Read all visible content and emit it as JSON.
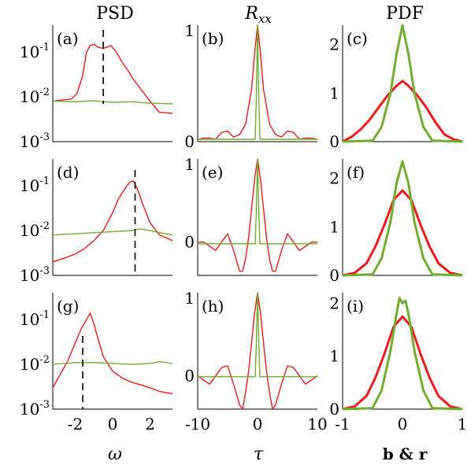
{
  "colors": {
    "red": "#ee1c1c",
    "green": "#6fae2e",
    "axis": "#000000",
    "marker": "#000000"
  },
  "columns": {
    "psd": "PSD",
    "rxx_base": "R",
    "rxx_sub": "xx",
    "pdf": "PDF"
  },
  "xlabels": {
    "psd": "ω",
    "rxx": "τ",
    "pdf": "b & r"
  },
  "panel_labels": [
    "(a)",
    "(b)",
    "(c)",
    "(d)",
    "(e)",
    "(f)",
    "(g)",
    "(h)",
    "(i)"
  ],
  "ticks": {
    "psd_y": [
      "10^-1",
      "10^-2",
      "10^-3"
    ],
    "psd_x": [
      "-2",
      "0",
      "2"
    ],
    "rxx_x": [
      "-10",
      "0",
      "10"
    ],
    "pdf_x": [
      "-1",
      "0",
      "1"
    ],
    "rxx_y": [
      "1",
      "0"
    ],
    "pdf_y_top": [
      "2",
      "1",
      "0"
    ],
    "pdf_y_bottom": [
      "2",
      "1",
      "0"
    ]
  },
  "chart_data": [
    {
      "type": "line",
      "panel": "(a)",
      "title": "PSD",
      "xlabel": "ω",
      "ylabel": "",
      "xlim": [
        -3.2,
        3.2
      ],
      "ylim": [
        0.001,
        0.4
      ],
      "yscale": "log",
      "marker_x": -0.5,
      "series": [
        {
          "color": "red",
          "x": [
            -3.2,
            -2.2,
            -1.9,
            -1.6,
            -1.4,
            -1.2,
            -1.0,
            -0.8,
            -0.5,
            -0.3,
            -0.1,
            0.2,
            0.5,
            0.8,
            1.1,
            1.5,
            2.0,
            2.5,
            3.2
          ],
          "y": [
            0.008,
            0.009,
            0.012,
            0.03,
            0.1,
            0.14,
            0.15,
            0.13,
            0.12,
            0.13,
            0.14,
            0.1,
            0.06,
            0.04,
            0.025,
            0.015,
            0.008,
            0.0045,
            0.0043
          ]
        },
        {
          "color": "green",
          "x": [
            -3.2,
            -2,
            -1,
            0,
            1,
            2,
            3.2
          ],
          "y": [
            0.008,
            0.0078,
            0.0082,
            0.0075,
            0.0078,
            0.0072,
            0.007
          ]
        }
      ]
    },
    {
      "type": "line",
      "panel": "(b)",
      "xlim": [
        -10,
        10
      ],
      "ylim": [
        0,
        1
      ],
      "series": [
        {
          "color": "red",
          "x": [
            -10,
            -9,
            -8,
            -7,
            -6,
            -5,
            -4,
            -3,
            -2,
            -1,
            -0.5,
            0,
            0.5,
            1,
            2,
            3,
            4,
            5,
            6,
            7,
            8,
            9,
            10
          ],
          "y": [
            0.02,
            0.03,
            0.03,
            0.02,
            0.08,
            0.09,
            0.04,
            0.06,
            0.15,
            0.45,
            0.75,
            1.0,
            0.75,
            0.45,
            0.15,
            0.06,
            0.04,
            0.09,
            0.08,
            0.02,
            0.03,
            0.03,
            0.02
          ]
        },
        {
          "color": "green",
          "x": [
            -10,
            -0.4,
            -0.2,
            0,
            0.2,
            0.4,
            10
          ],
          "y": [
            0.02,
            0.02,
            0.4,
            1.0,
            0.4,
            0.02,
            0.02
          ]
        }
      ]
    },
    {
      "type": "line",
      "panel": "(c)",
      "xlim": [
        -1,
        1
      ],
      "ylim": [
        0,
        2.4
      ],
      "series": [
        {
          "color": "red",
          "x": [
            -1,
            -0.85,
            -0.7,
            -0.55,
            -0.4,
            -0.25,
            -0.1,
            0,
            0.1,
            0.25,
            0.4,
            0.55,
            0.7,
            0.85,
            1
          ],
          "y": [
            0,
            0.1,
            0.25,
            0.45,
            0.7,
            0.95,
            1.15,
            1.25,
            1.15,
            0.95,
            0.7,
            0.4,
            0.15,
            0.05,
            0
          ]
        },
        {
          "color": "green",
          "x": [
            -1,
            -0.5,
            -0.35,
            -0.2,
            -0.1,
            0,
            0.1,
            0.2,
            0.35,
            0.5,
            1
          ],
          "y": [
            0,
            0.02,
            0.3,
            1.0,
            1.8,
            2.4,
            1.8,
            1.0,
            0.3,
            0.02,
            0
          ]
        }
      ]
    },
    {
      "type": "line",
      "panel": "(d)",
      "xlabel": "ω",
      "xlim": [
        -3.2,
        3.2
      ],
      "ylim": [
        0.001,
        0.4
      ],
      "yscale": "log",
      "marker_x": 1.2,
      "series": [
        {
          "color": "red",
          "x": [
            -3.2,
            -2.5,
            -2,
            -1.5,
            -1,
            -0.5,
            0,
            0.3,
            0.6,
            0.9,
            1.1,
            1.3,
            1.6,
            2,
            2.5,
            3.2
          ],
          "y": [
            0.002,
            0.0025,
            0.003,
            0.004,
            0.006,
            0.01,
            0.025,
            0.05,
            0.08,
            0.12,
            0.13,
            0.09,
            0.04,
            0.015,
            0.008,
            0.006
          ]
        },
        {
          "color": "green",
          "x": [
            -3.2,
            -2,
            -1,
            0,
            1,
            1.5,
            2,
            2.5,
            3.2
          ],
          "y": [
            0.008,
            0.0085,
            0.009,
            0.0095,
            0.01,
            0.011,
            0.01,
            0.009,
            0.008
          ]
        }
      ]
    },
    {
      "type": "line",
      "panel": "(e)",
      "xlim": [
        -10,
        10
      ],
      "ylim": [
        -0.4,
        1
      ],
      "series": [
        {
          "color": "red",
          "x": [
            -10,
            -9,
            -8,
            -7,
            -6,
            -5,
            -4,
            -3,
            -2.5,
            -2,
            -1.5,
            -1,
            -0.5,
            0,
            0.5,
            1,
            1.5,
            2,
            2.5,
            3,
            4,
            5,
            6,
            7,
            8,
            9,
            10
          ],
          "y": [
            0,
            0.0,
            -0.05,
            -0.1,
            0.0,
            0.1,
            -0.1,
            -0.35,
            -0.35,
            -0.2,
            0.05,
            0.4,
            0.75,
            1.0,
            0.75,
            0.4,
            0.05,
            -0.2,
            -0.35,
            -0.35,
            -0.1,
            0.1,
            0.0,
            -0.1,
            -0.05,
            0.0,
            0
          ]
        },
        {
          "color": "green",
          "x": [
            -10,
            -3,
            -0.4,
            -0.2,
            0,
            0.2,
            0.4,
            3,
            10
          ],
          "y": [
            -0.02,
            -0.02,
            -0.02,
            0.4,
            1.0,
            0.4,
            -0.02,
            -0.02,
            -0.02
          ]
        }
      ]
    },
    {
      "type": "line",
      "panel": "(f)",
      "xlim": [
        -1,
        1
      ],
      "ylim": [
        0,
        2.4
      ],
      "series": [
        {
          "color": "red",
          "x": [
            -1,
            -0.8,
            -0.6,
            -0.45,
            -0.3,
            -0.15,
            0,
            0.15,
            0.3,
            0.45,
            0.6,
            0.8,
            1
          ],
          "y": [
            0,
            0.05,
            0.25,
            0.6,
            1.05,
            1.55,
            1.75,
            1.55,
            1.05,
            0.6,
            0.25,
            0.05,
            0
          ]
        },
        {
          "color": "green",
          "x": [
            -1,
            -0.5,
            -0.35,
            -0.2,
            -0.1,
            0,
            0.1,
            0.2,
            0.35,
            0.5,
            1
          ],
          "y": [
            0,
            0.02,
            0.35,
            1.1,
            1.9,
            2.35,
            1.9,
            1.1,
            0.35,
            0.02,
            0
          ]
        }
      ]
    },
    {
      "type": "line",
      "panel": "(g)",
      "xlabel": "ω",
      "xlim": [
        -3.2,
        3.2
      ],
      "ylim": [
        0.001,
        0.4
      ],
      "yscale": "log",
      "marker_x": -1.6,
      "series": [
        {
          "color": "red",
          "x": [
            -3.2,
            -2.8,
            -2.4,
            -2,
            -1.7,
            -1.4,
            -1.2,
            -1,
            -0.8,
            -0.5,
            0,
            0.5,
            1,
            1.5,
            2,
            2.5,
            3.2
          ],
          "y": [
            0.003,
            0.006,
            0.012,
            0.03,
            0.06,
            0.1,
            0.14,
            0.08,
            0.04,
            0.015,
            0.007,
            0.005,
            0.004,
            0.0035,
            0.003,
            0.0025,
            0.0022
          ]
        },
        {
          "color": "green",
          "x": [
            -3.2,
            -2,
            -1,
            0,
            1,
            2,
            2.5,
            3.2
          ],
          "y": [
            0.01,
            0.011,
            0.011,
            0.0105,
            0.01,
            0.0105,
            0.0115,
            0.0105
          ]
        }
      ]
    },
    {
      "type": "line",
      "panel": "(h)",
      "xlabel": "τ",
      "xlim": [
        -10,
        10
      ],
      "ylim": [
        -0.4,
        1
      ],
      "series": [
        {
          "color": "red",
          "x": [
            -10,
            -9,
            -8,
            -7,
            -6,
            -5,
            -4,
            -3,
            -2.5,
            -2,
            -1.5,
            -1,
            -0.5,
            0,
            0.5,
            1,
            1.5,
            2,
            2.5,
            3,
            4,
            5,
            6,
            7,
            8,
            9,
            10
          ],
          "y": [
            0,
            -0.05,
            -0.1,
            0,
            0.1,
            0.12,
            -0.1,
            -0.35,
            -0.4,
            -0.2,
            0.05,
            0.4,
            0.75,
            1.0,
            0.75,
            0.4,
            0.05,
            -0.2,
            -0.4,
            -0.35,
            -0.1,
            0.12,
            0.1,
            0,
            -0.1,
            -0.05,
            0
          ]
        },
        {
          "color": "green",
          "x": [
            -10,
            -3,
            -0.4,
            -0.2,
            0,
            0.2,
            0.4,
            3,
            10
          ],
          "y": [
            -0.01,
            -0.01,
            -0.01,
            0.4,
            1.0,
            0.4,
            -0.01,
            -0.01,
            -0.01
          ]
        }
      ]
    },
    {
      "type": "line",
      "panel": "(i)",
      "xlabel": "b & r",
      "xlim": [
        -1,
        1
      ],
      "ylim": [
        0,
        2.2
      ],
      "series": [
        {
          "color": "red",
          "x": [
            -1,
            -0.8,
            -0.6,
            -0.45,
            -0.3,
            -0.15,
            0,
            0.15,
            0.3,
            0.45,
            0.6,
            0.8,
            1
          ],
          "y": [
            0,
            0.05,
            0.25,
            0.6,
            1.05,
            1.55,
            1.75,
            1.55,
            1.05,
            0.6,
            0.25,
            0.05,
            0
          ]
        },
        {
          "color": "green",
          "x": [
            -1,
            -0.5,
            -0.35,
            -0.2,
            -0.1,
            -0.05,
            0,
            0.05,
            0.1,
            0.2,
            0.35,
            0.5,
            1
          ],
          "y": [
            0,
            0.02,
            0.35,
            1.1,
            1.8,
            2.1,
            2.0,
            2.05,
            1.8,
            1.1,
            0.35,
            0.02,
            0
          ]
        }
      ]
    }
  ]
}
